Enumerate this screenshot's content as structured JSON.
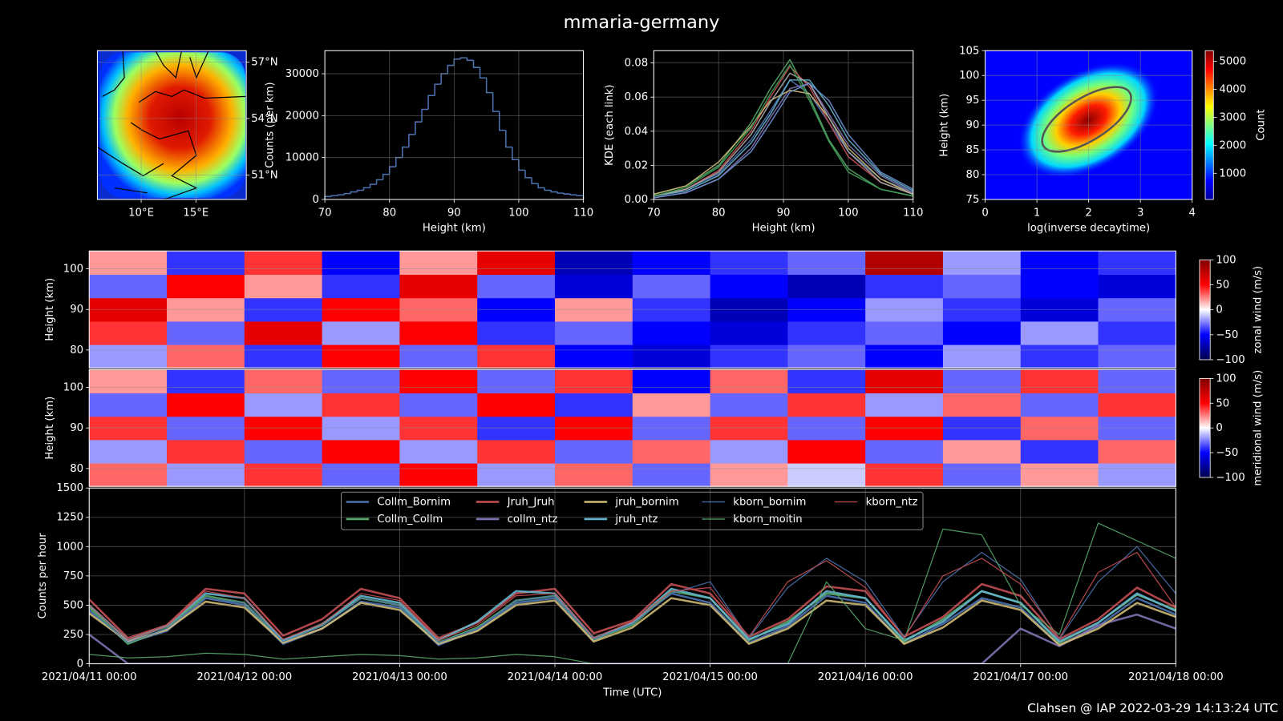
{
  "title": "mmaria-germany",
  "footer": "Clahsen @ IAP 2022-03-29 14:13:24 UTC",
  "chart_data": [
    {
      "type": "map",
      "xlim": [
        6,
        19.6
      ],
      "ylim": [
        49.7,
        57.6
      ],
      "xticks": [
        {
          "value": 10,
          "label": "10°E"
        },
        {
          "value": 15,
          "label": "15°E"
        }
      ],
      "yticks": [
        {
          "value": 51,
          "label": "51°N"
        },
        {
          "value": 54,
          "label": "54°N"
        },
        {
          "value": 57,
          "label": "57°N"
        }
      ],
      "grid": true
    },
    {
      "type": "histogram",
      "xlabel": "Height (km)",
      "ylabel": "Counts (per km)",
      "color": "#4c72b0",
      "bins": [
        70,
        71,
        72,
        73,
        74,
        75,
        76,
        77,
        78,
        79,
        80,
        81,
        82,
        83,
        84,
        85,
        86,
        87,
        88,
        89,
        90,
        91,
        92,
        93,
        94,
        95,
        96,
        97,
        98,
        99,
        100,
        101,
        102,
        103,
        104,
        105,
        106,
        107,
        108,
        109,
        110
      ],
      "values": [
        700,
        900,
        1100,
        1400,
        1800,
        2200,
        2800,
        3600,
        4700,
        6000,
        7800,
        10000,
        12500,
        15500,
        18500,
        21500,
        24800,
        27500,
        30000,
        32000,
        33500,
        33800,
        33200,
        31500,
        29000,
        25500,
        21000,
        16500,
        12500,
        9500,
        7000,
        5200,
        3800,
        2800,
        2200,
        1800,
        1500,
        1300,
        1100,
        900
      ],
      "xlim": [
        70,
        110
      ],
      "xticks": [
        70,
        80,
        90,
        100,
        110
      ],
      "ylim": [
        0,
        35500
      ],
      "yticks": [
        0,
        10000,
        20000,
        30000
      ],
      "grid": true
    },
    {
      "type": "line",
      "xlabel": "Height (km)",
      "ylabel": "KDE (each link)",
      "x": [
        70,
        75,
        80,
        85,
        88,
        91,
        94,
        97,
        100,
        105,
        110
      ],
      "series": [
        {
          "color": "#4c72b0",
          "values": [
            0.002,
            0.006,
            0.015,
            0.035,
            0.052,
            0.07,
            0.062,
            0.045,
            0.028,
            0.012,
            0.004
          ]
        },
        {
          "color": "#55a868",
          "values": [
            0.003,
            0.008,
            0.02,
            0.045,
            0.065,
            0.082,
            0.06,
            0.035,
            0.018,
            0.006,
            0.002
          ]
        },
        {
          "color": "#c44e52",
          "values": [
            0.002,
            0.006,
            0.017,
            0.04,
            0.06,
            0.078,
            0.066,
            0.045,
            0.025,
            0.01,
            0.003
          ]
        },
        {
          "color": "#8172b2",
          "values": [
            0.001,
            0.004,
            0.012,
            0.03,
            0.048,
            0.065,
            0.068,
            0.05,
            0.032,
            0.014,
            0.004
          ]
        },
        {
          "color": "#ccb974",
          "values": [
            0.003,
            0.008,
            0.022,
            0.043,
            0.058,
            0.064,
            0.062,
            0.048,
            0.03,
            0.012,
            0.003
          ]
        },
        {
          "color": "#64b5cd",
          "values": [
            0.002,
            0.005,
            0.014,
            0.033,
            0.05,
            0.07,
            0.07,
            0.055,
            0.035,
            0.015,
            0.005
          ]
        },
        {
          "color": "#aaaaaa",
          "values": [
            0.002,
            0.006,
            0.016,
            0.038,
            0.057,
            0.074,
            0.068,
            0.048,
            0.028,
            0.01,
            0.003
          ]
        },
        {
          "color": "#6a8fd0",
          "values": [
            0.001,
            0.004,
            0.012,
            0.028,
            0.045,
            0.063,
            0.068,
            0.058,
            0.038,
            0.016,
            0.006
          ]
        },
        {
          "color": "#3f9a55",
          "values": [
            0.002,
            0.007,
            0.019,
            0.042,
            0.062,
            0.079,
            0.058,
            0.034,
            0.016,
            0.006,
            0.002
          ]
        }
      ],
      "xlim": [
        70,
        110
      ],
      "xticks": [
        70,
        80,
        90,
        100,
        110
      ],
      "ylim": [
        0,
        0.0872
      ],
      "yticks": [
        {
          "value": 0,
          "label": "0.00"
        },
        0.02,
        0.04,
        0.06,
        0.08
      ],
      "grid": true
    },
    {
      "type": "density",
      "xlabel": "log(inverse decaytime)",
      "ylabel": "Height (km)",
      "xlim": [
        0,
        4
      ],
      "xticks": [
        0,
        1,
        2,
        3,
        4
      ],
      "ylim": [
        75,
        105
      ],
      "yticks": [
        75,
        80,
        85,
        90,
        95,
        100,
        105
      ],
      "grid": true,
      "colorbar": {
        "label": "Count",
        "lim": [
          65,
          5380
        ],
        "ticks": [
          1000,
          2000,
          3000,
          4000,
          5000
        ]
      }
    },
    {
      "type": "heatmap",
      "ylabel": "Height (km)",
      "ylim": [
        75.6,
        104.4
      ],
      "yticks": [
        80,
        90,
        100
      ],
      "grid": true,
      "values": [
        [
          -20,
          30,
          -40,
          50,
          -30,
          40,
          -50,
          -60,
          -40,
          -30,
          -50,
          -20,
          -40,
          -30
        ],
        [
          40,
          -30,
          60,
          -20,
          50,
          -40,
          -30,
          -50,
          -60,
          -40,
          -30,
          -50,
          -20,
          -40
        ],
        [
          60,
          20,
          -40,
          50,
          30,
          -50,
          20,
          -40,
          -70,
          -50,
          -20,
          -40,
          -60,
          -30
        ],
        [
          -30,
          50,
          20,
          -40,
          60,
          -30,
          -60,
          -30,
          -50,
          -70,
          -40,
          -30,
          -50,
          -60
        ],
        [
          20,
          -40,
          40,
          -50,
          20,
          60,
          -70,
          -50,
          -40,
          -30,
          80,
          -20,
          -50,
          -40
        ]
      ],
      "colorbar": {
        "label": "zonal wind (m/s)",
        "lim": [
          -100,
          100
        ],
        "ticks": [
          {
            "value": -100,
            "label": "−100"
          },
          {
            "value": -50,
            "label": "−50"
          },
          0,
          50,
          100
        ]
      }
    },
    {
      "type": "heatmap",
      "ylabel": "Height (km)",
      "ylim": [
        75.6,
        104.4
      ],
      "yticks": [
        80,
        90,
        100
      ],
      "grid": true,
      "values": [
        [
          30,
          -20,
          40,
          -30,
          50,
          -20,
          30,
          -30,
          20,
          -10,
          40,
          -30,
          20,
          -20
        ],
        [
          -20,
          40,
          -30,
          50,
          -20,
          40,
          -30,
          30,
          -20,
          50,
          -30,
          20,
          -40,
          30
        ],
        [
          40,
          -30,
          50,
          -20,
          40,
          -40,
          50,
          -30,
          40,
          -30,
          50,
          -40,
          30,
          -30
        ],
        [
          -30,
          50,
          -20,
          40,
          -30,
          50,
          -40,
          20,
          -30,
          40,
          -20,
          30,
          -30,
          40
        ],
        [
          20,
          -40,
          30,
          -30,
          50,
          -30,
          40,
          -50,
          30,
          -40,
          60,
          -30,
          40,
          -30
        ]
      ],
      "colorbar": {
        "label": "meridional wind (m/s)",
        "lim": [
          -100,
          100
        ],
        "ticks": [
          {
            "value": -100,
            "label": "−100"
          },
          {
            "value": -50,
            "label": "−50"
          },
          0,
          50,
          100
        ]
      }
    },
    {
      "type": "line",
      "xlabel": "Time (UTC)",
      "ylabel": "Counts per hour",
      "x": [
        "2021/04/11 00:00",
        "2021/04/11 06:00",
        "2021/04/11 12:00",
        "2021/04/11 18:00",
        "2021/04/12 00:00",
        "2021/04/12 06:00",
        "2021/04/12 12:00",
        "2021/04/12 18:00",
        "2021/04/13 00:00",
        "2021/04/13 06:00",
        "2021/04/13 12:00",
        "2021/04/13 18:00",
        "2021/04/14 00:00",
        "2021/04/14 06:00",
        "2021/04/14 12:00",
        "2021/04/14 18:00",
        "2021/04/15 00:00",
        "2021/04/15 06:00",
        "2021/04/15 12:00",
        "2021/04/15 18:00",
        "2021/04/16 00:00",
        "2021/04/16 06:00",
        "2021/04/16 12:00",
        "2021/04/16 18:00",
        "2021/04/17 00:00",
        "2021/04/17 06:00",
        "2021/04/17 12:00",
        "2021/04/17 18:00",
        "2021/04/18 00:00"
      ],
      "series": [
        {
          "name": "Collm_Bornim",
          "color": "#4c72b0",
          "linewidth": 2.5,
          "values": [
            450,
            180,
            280,
            560,
            500,
            170,
            300,
            530,
            480,
            160,
            290,
            520,
            560,
            200,
            350,
            600,
            520,
            180,
            320,
            580,
            520,
            170,
            340,
            560,
            480,
            160,
            320,
            560,
            420
          ]
        },
        {
          "name": "Collm_Collm",
          "color": "#55a868",
          "linewidth": 2.5,
          "values": [
            480,
            170,
            300,
            580,
            520,
            190,
            330,
            560,
            500,
            180,
            310,
            540,
            580,
            210,
            330,
            620,
            560,
            200,
            360,
            600,
            560,
            190,
            380,
            620,
            520,
            180,
            350,
            590,
            460
          ]
        },
        {
          "name": "Jruh_Jruh",
          "color": "#c44e52",
          "linewidth": 2.5,
          "values": [
            550,
            220,
            330,
            640,
            600,
            240,
            380,
            640,
            560,
            220,
            350,
            600,
            640,
            260,
            370,
            680,
            600,
            230,
            380,
            660,
            620,
            230,
            400,
            680,
            580,
            210,
            380,
            650,
            480
          ]
        },
        {
          "name": "collm_ntz",
          "color": "#8172b2",
          "linewidth": 2.5,
          "values": [
            250,
            0,
            0,
            0,
            0,
            0,
            0,
            0,
            0,
            0,
            0,
            0,
            0,
            0,
            0,
            0,
            0,
            0,
            0,
            0,
            0,
            0,
            0,
            0,
            300,
            150,
            330,
            420,
            300
          ]
        },
        {
          "name": "jruh_bornim",
          "color": "#ccb974",
          "linewidth": 2.5,
          "values": [
            430,
            190,
            290,
            530,
            480,
            180,
            300,
            520,
            460,
            170,
            280,
            500,
            540,
            190,
            310,
            560,
            500,
            170,
            300,
            540,
            500,
            170,
            310,
            540,
            460,
            160,
            300,
            520,
            400
          ]
        },
        {
          "name": "jruh_ntz",
          "color": "#64b5cd",
          "linewidth": 2.5,
          "values": [
            500,
            200,
            320,
            600,
            560,
            200,
            340,
            580,
            520,
            200,
            360,
            620,
            600,
            220,
            350,
            640,
            560,
            210,
            340,
            620,
            560,
            200,
            360,
            620,
            520,
            190,
            350,
            600,
            450
          ]
        },
        {
          "name": "kborn_bornim",
          "color": "#4c72b0",
          "linewidth": 1.2,
          "values": [
            460,
            180,
            300,
            560,
            520,
            190,
            320,
            560,
            500,
            180,
            300,
            540,
            580,
            210,
            340,
            600,
            700,
            220,
            650,
            900,
            700,
            230,
            700,
            950,
            720,
            210,
            700,
            1000,
            600
          ]
        },
        {
          "name": "kborn_moitin",
          "color": "#55a868",
          "linewidth": 1.2,
          "values": [
            80,
            50,
            60,
            90,
            80,
            40,
            60,
            80,
            70,
            40,
            50,
            80,
            60,
            0,
            0,
            0,
            0,
            0,
            0,
            700,
            300,
            200,
            1150,
            1100,
            500,
            250,
            1200,
            1050,
            900
          ]
        },
        {
          "name": "kborn_ntz",
          "color": "#c44e52",
          "linewidth": 1.2,
          "values": [
            500,
            200,
            320,
            620,
            560,
            210,
            340,
            600,
            540,
            200,
            330,
            580,
            600,
            220,
            360,
            620,
            650,
            230,
            700,
            880,
            650,
            220,
            750,
            900,
            680,
            220,
            780,
            950,
            480
          ]
        }
      ],
      "xlim": [
        "2021/04/11 00:00",
        "2021/04/18 00:00"
      ],
      "xticks": [
        "2021/04/11 00:00",
        "2021/04/12 00:00",
        "2021/04/13 00:00",
        "2021/04/14 00:00",
        "2021/04/15 00:00",
        "2021/04/16 00:00",
        "2021/04/17 00:00",
        "2021/04/18 00:00"
      ],
      "ylim": [
        0,
        1500
      ],
      "yticks": [
        0,
        250,
        500,
        750,
        1000,
        1250,
        1500
      ],
      "grid": true,
      "legend": "upper center",
      "legend_columns": 5
    }
  ]
}
